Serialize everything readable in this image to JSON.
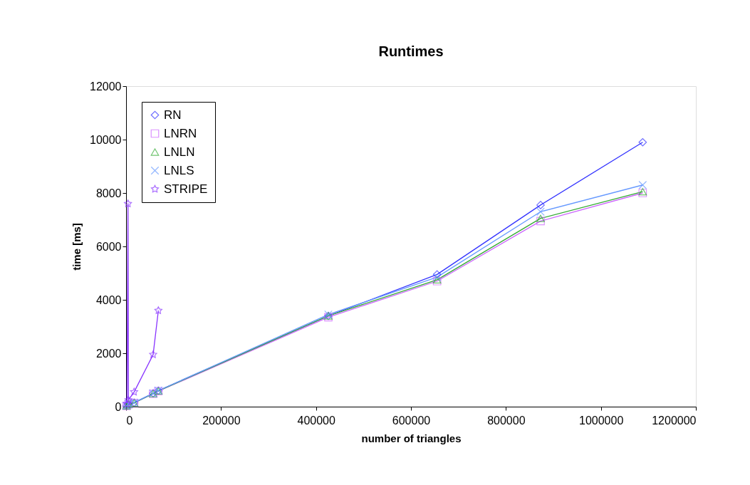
{
  "chart_data": {
    "type": "line",
    "title": "Runtimes",
    "xlabel": "number of triangles",
    "ylabel": "time [ms]",
    "xlim": [
      0,
      1200000
    ],
    "xticks": [
      0,
      200000,
      400000,
      600000,
      800000,
      1000000,
      1200000
    ],
    "ylim": [
      0,
      12000
    ],
    "yticks": [
      0,
      2000,
      4000,
      6000,
      8000,
      10000,
      12000
    ],
    "grid": false,
    "legend": "top left",
    "line_style": "solid",
    "series": [
      {
        "name": "RN",
        "color": "#3333ff",
        "marker": "diamond",
        "x": [
          1000,
          5000,
          17000,
          57000,
          68000,
          426000,
          655000,
          873000,
          1088000
        ],
        "values": [
          30,
          100,
          150,
          500,
          600,
          3400,
          4950,
          7550,
          9900
        ]
      },
      {
        "name": "LNRN",
        "color": "#cc66ff",
        "marker": "square",
        "x": [
          1000,
          5000,
          17000,
          57000,
          68000,
          426000,
          655000,
          873000,
          1088000
        ],
        "values": [
          30,
          90,
          140,
          480,
          580,
          3350,
          4700,
          6950,
          8000
        ]
      },
      {
        "name": "LNLN",
        "color": "#33aa33",
        "marker": "triangle",
        "x": [
          1000,
          5000,
          17000,
          57000,
          68000,
          426000,
          655000,
          873000,
          1088000
        ],
        "values": [
          30,
          90,
          140,
          490,
          590,
          3400,
          4750,
          7050,
          8050
        ]
      },
      {
        "name": "LNLS",
        "color": "#6699ff",
        "marker": "cross",
        "x": [
          1000,
          5000,
          17000,
          57000,
          68000,
          426000,
          655000,
          873000,
          1088000
        ],
        "values": [
          30,
          100,
          150,
          500,
          600,
          3450,
          4850,
          7300,
          8300
        ]
      },
      {
        "name": "STRIPE",
        "color": "#8833ff",
        "marker": "star",
        "x": [
          2000,
          4000,
          5000,
          17000,
          57000,
          68000
        ],
        "values": [
          100,
          7600,
          250,
          550,
          1950,
          3600
        ]
      }
    ]
  }
}
